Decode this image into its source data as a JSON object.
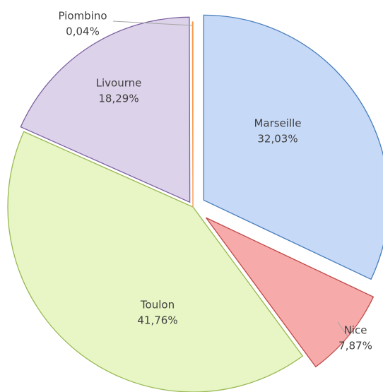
{
  "chart_data": {
    "type": "pie",
    "categories": [
      "Marseille",
      "Nice",
      "Toulon",
      "Livourne",
      "Piombino"
    ],
    "values": [
      32.03,
      7.87,
      41.76,
      18.29,
      0.04
    ],
    "value_labels": [
      "32,03%",
      "7,87%",
      "41,76%",
      "18,29%",
      "0,04%"
    ],
    "colors": [
      "#c6d9f7",
      "#f6aaaa",
      "#e8f5c4",
      "#dcd2ea",
      "#f9b77c"
    ],
    "edge_colors": [
      "#4a7ebb",
      "#be4b48",
      "#98b954",
      "#7d60a0",
      "#f79646"
    ]
  }
}
